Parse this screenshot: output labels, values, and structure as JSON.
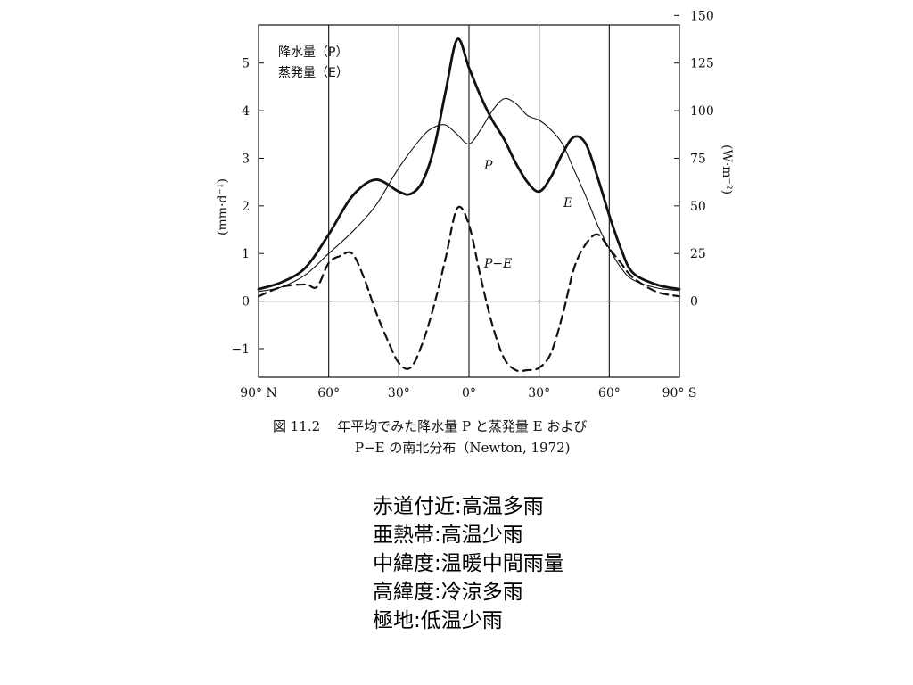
{
  "chart_data": {
    "type": "line",
    "title": "",
    "xlabel": "",
    "x_tick_labels": [
      "90° N",
      "60°",
      "30°",
      "0°",
      "30°",
      "60°",
      "90° S"
    ],
    "x_ticks": [
      90,
      60,
      30,
      0,
      -30,
      -60,
      -90
    ],
    "xlim": [
      90,
      -90
    ],
    "ylabel_left": "(mm·d⁻¹)",
    "ylim_left": [
      -1.6,
      5.8
    ],
    "y_ticks_left": [
      -1,
      0,
      1,
      2,
      3,
      4,
      5
    ],
    "y_tick_labels_left": [
      "−1",
      "0",
      "1",
      "2",
      "3",
      "4",
      "5"
    ],
    "ylabel_right": "(W·m⁻²)",
    "y_ticks_right": [
      0,
      25,
      50,
      75,
      100,
      125,
      150
    ],
    "y_tick_labels_right": [
      "0",
      "25",
      "50",
      "75",
      "100",
      "125",
      "150"
    ],
    "legend": {
      "placement": "top-left",
      "entries": [
        "降水量（P）",
        "蒸発量（E）"
      ]
    },
    "series": [
      {
        "name": "P",
        "style": "thick-solid",
        "x": [
          90,
          80,
          70,
          60,
          50,
          40,
          30,
          25,
          20,
          15,
          10,
          5,
          0,
          -5,
          -10,
          -15,
          -20,
          -25,
          -30,
          -35,
          -40,
          -45,
          -50,
          -55,
          -60,
          -65,
          -70,
          -80,
          -90
        ],
        "y": [
          0.25,
          0.4,
          0.7,
          1.4,
          2.2,
          2.55,
          2.3,
          2.25,
          2.5,
          3.2,
          4.4,
          5.5,
          4.9,
          4.3,
          3.8,
          3.4,
          2.9,
          2.5,
          2.3,
          2.6,
          3.1,
          3.45,
          3.3,
          2.6,
          1.8,
          1.1,
          0.6,
          0.35,
          0.25
        ]
      },
      {
        "name": "E",
        "style": "thin-solid",
        "x": [
          90,
          80,
          70,
          60,
          50,
          40,
          30,
          20,
          15,
          10,
          5,
          0,
          -5,
          -10,
          -15,
          -20,
          -25,
          -30,
          -35,
          -40,
          -45,
          -50,
          -55,
          -60,
          -65,
          -70,
          -80,
          -90
        ],
        "y": [
          0.2,
          0.3,
          0.55,
          1.0,
          1.45,
          2.0,
          2.8,
          3.45,
          3.65,
          3.7,
          3.5,
          3.3,
          3.6,
          4.0,
          4.25,
          4.15,
          3.9,
          3.8,
          3.6,
          3.3,
          2.75,
          2.2,
          1.6,
          1.1,
          0.7,
          0.45,
          0.28,
          0.22
        ]
      },
      {
        "name": "P−E",
        "style": "dashed",
        "x": [
          90,
          80,
          70,
          65,
          60,
          55,
          50,
          45,
          40,
          35,
          30,
          25,
          20,
          15,
          10,
          5,
          0,
          -5,
          -10,
          -15,
          -20,
          -25,
          -30,
          -35,
          -40,
          -45,
          -50,
          -55,
          -60,
          -65,
          -70,
          -80,
          -90
        ],
        "y": [
          0.1,
          0.3,
          0.35,
          0.3,
          0.8,
          0.95,
          1.0,
          0.5,
          -0.2,
          -0.8,
          -1.3,
          -1.4,
          -0.9,
          -0.1,
          0.9,
          1.95,
          1.6,
          0.5,
          -0.5,
          -1.2,
          -1.45,
          -1.45,
          -1.4,
          -1.1,
          -0.3,
          0.7,
          1.2,
          1.4,
          1.1,
          0.8,
          0.5,
          0.2,
          0.1
        ]
      }
    ],
    "series_labels": [
      "P",
      "E",
      "P−E"
    ]
  },
  "caption": {
    "figure_number": "図 11.2",
    "line1": "年平均でみた降水量 P と蒸発量 E および",
    "line2": "P−E の南北分布（Newton, 1972)"
  },
  "notes": [
    "赤道付近:高温多雨",
    "亜熱帯:高温少雨",
    "中緯度:温暖中間雨量",
    "高緯度:冷涼多雨",
    "極地:低温少雨"
  ]
}
